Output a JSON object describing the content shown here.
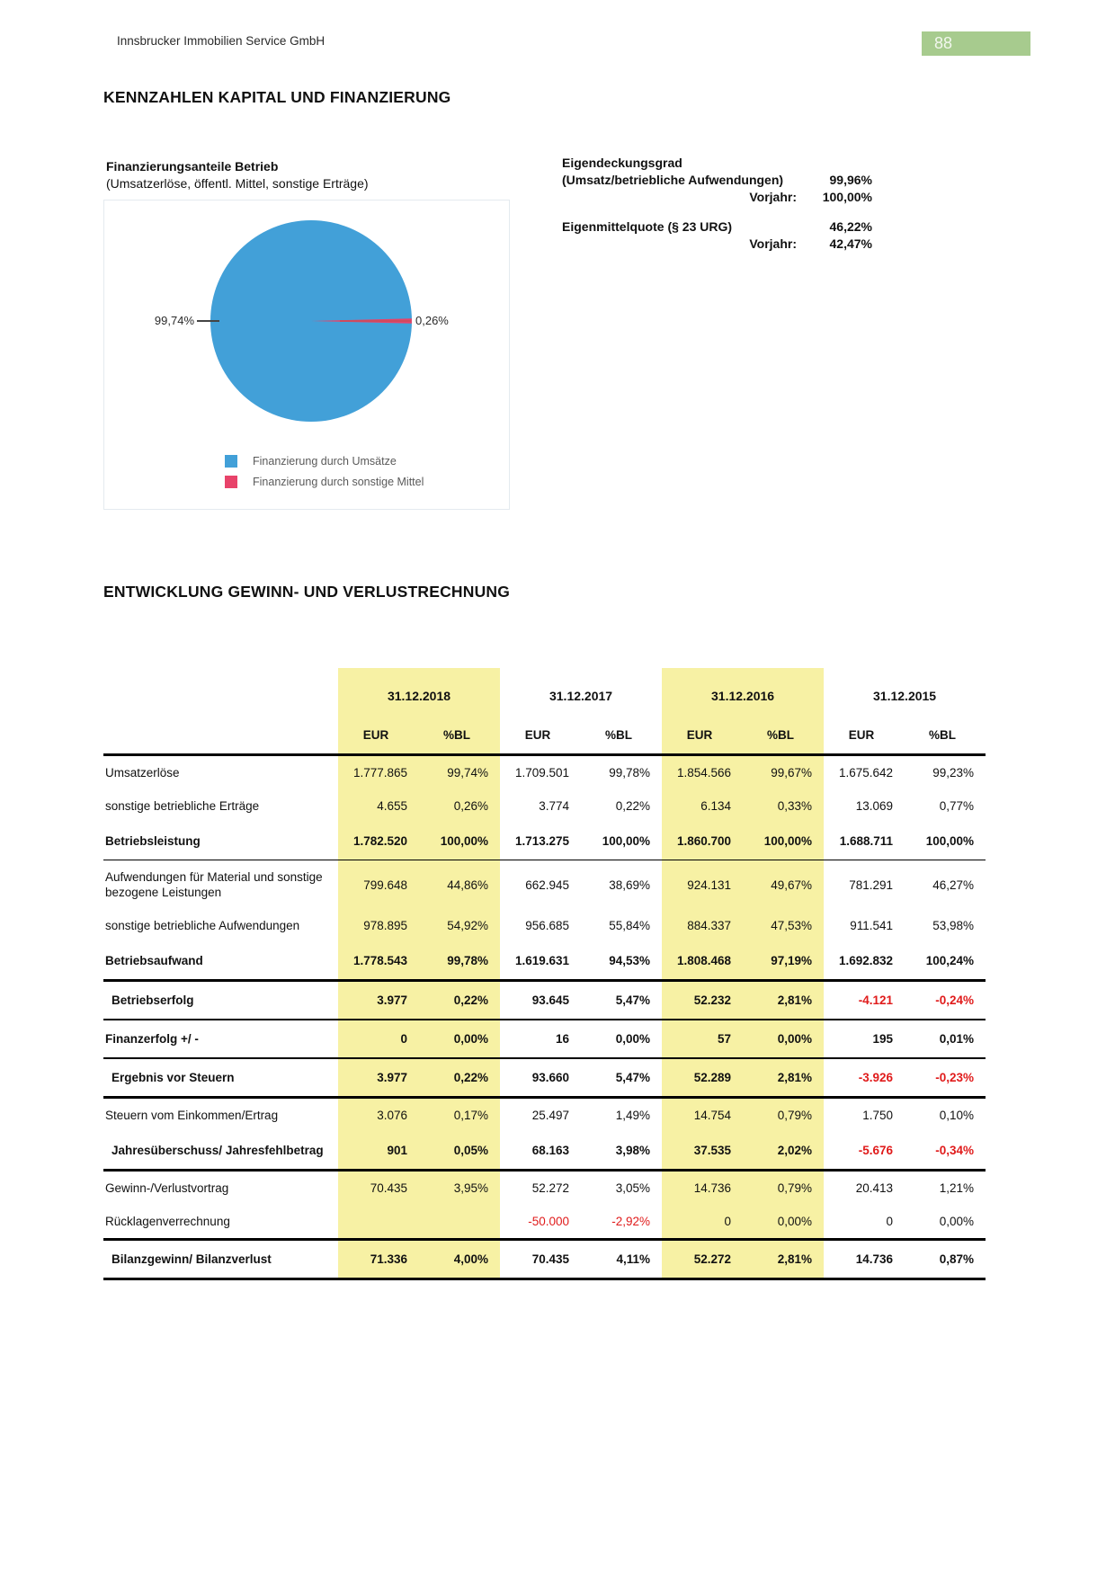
{
  "colors": {
    "page_number_bg": "#a7cb8e",
    "table_highlight": "#f7f1a4",
    "pie_blue": "#42a0d8",
    "pie_red": "#e8436a",
    "negative_text": "#e01b1b"
  },
  "header": {
    "company": "Innsbrucker Immobilien Service GmbH",
    "page_number": "88"
  },
  "section1": {
    "title": "KENNZAHLEN KAPITAL UND FINANZIERUNG",
    "pie": {
      "title": "Finanzierungsanteile Betrieb",
      "subtitle": " (Umsatzerlöse, öffentl. Mittel, sonstige Erträge)",
      "label_left": "99,74%",
      "label_right": "0,26%",
      "legend": [
        {
          "label": "Finanzierung durch Umsätze",
          "color": "#42a0d8"
        },
        {
          "label": "Finanzierung durch sonstige Mittel",
          "color": "#e8436a"
        }
      ]
    },
    "metrics": [
      {
        "title": "Eigendeckungsgrad",
        "subtitle": "(Umsatz/betriebliche Aufwendungen)",
        "value": "99,96%",
        "vorjahr_label": "Vorjahr:",
        "vorjahr_value": "100,00%"
      },
      {
        "title": "Eigenmittelquote (§ 23 URG)",
        "value": "46,22%",
        "vorjahr_label": "Vorjahr:",
        "vorjahr_value": "42,47%"
      }
    ]
  },
  "section2": {
    "title": "ENTWICKLUNG GEWINN- UND VERLUSTRECHNUNG",
    "table": {
      "years": [
        "31.12.2018",
        "31.12.2017",
        "31.12.2016",
        "31.12.2015"
      ],
      "sub": [
        "EUR",
        "%BL"
      ],
      "highlighted_years": [
        "31.12.2018",
        "31.12.2016"
      ],
      "rows": [
        {
          "label": "Umsatzerlöse",
          "bold": false,
          "border": "",
          "indent": false,
          "values": [
            "1.777.865",
            "99,74%",
            "1.709.501",
            "99,78%",
            "1.854.566",
            "99,67%",
            "1.675.642",
            "99,23%"
          ]
        },
        {
          "label": "sonstige betriebliche Erträge",
          "bold": false,
          "border": "",
          "indent": false,
          "values": [
            "4.655",
            "0,26%",
            "3.774",
            "0,22%",
            "6.134",
            "0,33%",
            "13.069",
            "0,77%"
          ]
        },
        {
          "label": "Betriebsleistung",
          "bold": true,
          "border": "thin",
          "indent": false,
          "values": [
            "1.782.520",
            "100,00%",
            "1.713.275",
            "100,00%",
            "1.860.700",
            "100,00%",
            "1.688.711",
            "100,00%"
          ]
        },
        {
          "label": "Aufwendungen für Material und sonstige bezogene Leistungen",
          "bold": false,
          "border": "",
          "indent": false,
          "values": [
            "799.648",
            "44,86%",
            "662.945",
            "38,69%",
            "924.131",
            "49,67%",
            "781.291",
            "46,27%"
          ]
        },
        {
          "label": "sonstige betriebliche Aufwendungen",
          "bold": false,
          "border": "",
          "indent": false,
          "values": [
            "978.895",
            "54,92%",
            "956.685",
            "55,84%",
            "884.337",
            "47,53%",
            "911.541",
            "53,98%"
          ]
        },
        {
          "label": "Betriebsaufwand",
          "bold": true,
          "border": "thick",
          "indent": false,
          "values": [
            "1.778.543",
            "99,78%",
            "1.619.631",
            "94,53%",
            "1.808.468",
            "97,19%",
            "1.692.832",
            "100,24%"
          ]
        },
        {
          "label": "Betriebserfolg",
          "bold": true,
          "border": "med",
          "indent": true,
          "values": [
            "3.977",
            "0,22%",
            "93.645",
            "5,47%",
            "52.232",
            "2,81%",
            "-4.121",
            "-0,24%"
          ]
        },
        {
          "label": "Finanzerfolg +/ -",
          "bold": true,
          "border": "med",
          "indent": false,
          "values": [
            "0",
            "0,00%",
            "16",
            "0,00%",
            "57",
            "0,00%",
            "195",
            "0,01%"
          ]
        },
        {
          "label": "Ergebnis vor Steuern",
          "bold": true,
          "border": "thick",
          "indent": true,
          "values": [
            "3.977",
            "0,22%",
            "93.660",
            "5,47%",
            "52.289",
            "2,81%",
            "-3.926",
            "-0,23%"
          ]
        },
        {
          "label": "Steuern vom Einkommen/Ertrag",
          "bold": false,
          "border": "",
          "indent": false,
          "values": [
            "3.076",
            "0,17%",
            "25.497",
            "1,49%",
            "14.754",
            "0,79%",
            "1.750",
            "0,10%"
          ]
        },
        {
          "label": "Jahresüberschuss/ Jahresfehlbetrag",
          "bold": true,
          "border": "thick",
          "indent": true,
          "values": [
            "901",
            "0,05%",
            "68.163",
            "3,98%",
            "37.535",
            "2,02%",
            "-5.676",
            "-0,34%"
          ]
        },
        {
          "label": "Gewinn-/Verlustvortrag",
          "bold": false,
          "border": "",
          "indent": false,
          "values": [
            "70.435",
            "3,95%",
            "52.272",
            "3,05%",
            "14.736",
            "0,79%",
            "20.413",
            "1,21%"
          ]
        },
        {
          "label": "Rücklagenverrechnung",
          "bold": false,
          "border": "thick",
          "indent": false,
          "values": [
            "",
            "",
            "-50.000",
            "-2,92%",
            "0",
            "0,00%",
            "0",
            "0,00%"
          ]
        },
        {
          "label": "Bilanzgewinn/ Bilanzverlust",
          "bold": true,
          "border": "thick",
          "indent": true,
          "values": [
            "71.336",
            "4,00%",
            "70.435",
            "4,11%",
            "52.272",
            "2,81%",
            "14.736",
            "0,87%"
          ]
        }
      ]
    }
  },
  "chart_data": {
    "type": "pie",
    "title": "Finanzierungsanteile Betrieb (Umsatzerlöse, öffentl. Mittel, sonstige Erträge)",
    "labels": [
      "Finanzierung durch Umsätze",
      "Finanzierung durch sonstige Mittel"
    ],
    "values": [
      99.74,
      0.26
    ],
    "unit": "%",
    "colors": [
      "#42a0d8",
      "#e8436a"
    ],
    "legend_position": "bottom-left",
    "data_labels": [
      "99,74%",
      "0,26%"
    ]
  }
}
